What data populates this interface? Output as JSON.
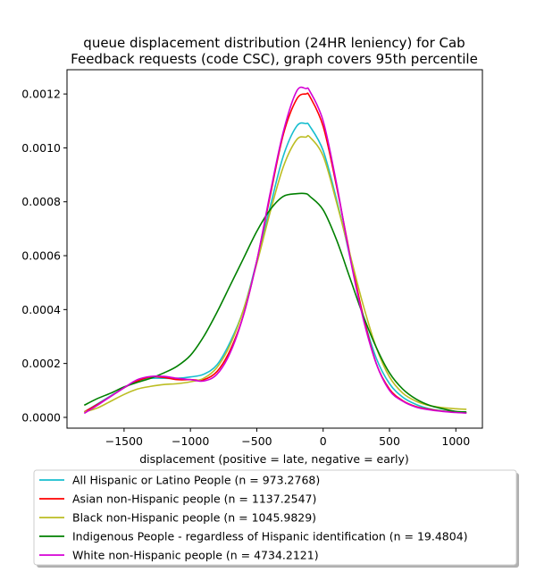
{
  "chart_data": {
    "type": "line",
    "title_lines": [
      "queue displacement distribution (24HR leniency) for Cab",
      "Feedback  requests (code CSC), graph covers 95th percentile"
    ],
    "xlabel": "displacement (positive = late, negative = early)",
    "ylabel": "",
    "xlim": [
      -1930,
      1200
    ],
    "ylim": [
      -4e-05,
      0.00129
    ],
    "x_ticks": [
      -1500,
      -1000,
      -500,
      0,
      500,
      1000
    ],
    "x_tick_labels": [
      "−1500",
      "−1000",
      "−500",
      "0",
      "500",
      "1000"
    ],
    "y_ticks": [
      0,
      0.0002,
      0.0004,
      0.0006,
      0.0008,
      0.001,
      0.0012
    ],
    "y_tick_labels": [
      "0.0000",
      "0.0002",
      "0.0004",
      "0.0006",
      "0.0008",
      "0.0010",
      "0.0012"
    ],
    "grid": false,
    "legend_position": "below",
    "x": [
      -1800,
      -1700,
      -1600,
      -1500,
      -1400,
      -1300,
      -1200,
      -1100,
      -1000,
      -900,
      -800,
      -700,
      -600,
      -500,
      -400,
      -300,
      -200,
      -130,
      -100,
      0,
      100,
      200,
      300,
      400,
      500,
      600,
      700,
      800,
      900,
      1000,
      1080
    ],
    "series": [
      {
        "name": "All Hispanic or Latino People (n = 973.2768)",
        "color": "#17becf",
        "values": [
          2e-05,
          5e-05,
          8e-05,
          0.00011,
          0.000135,
          0.000145,
          0.000145,
          0.000145,
          0.00015,
          0.00016,
          0.000195,
          0.00028,
          0.0004,
          0.00058,
          0.00078,
          0.00097,
          0.00108,
          0.00109,
          0.00108,
          0.00099,
          0.00081,
          0.0006,
          0.00038,
          0.00022,
          0.000125,
          7.5e-05,
          4.8e-05,
          3.2e-05,
          2.4e-05,
          2e-05,
          1.7e-05
        ]
      },
      {
        "name": "Asian non-Hispanic people (n = 1137.2547)",
        "color": "#ff0000",
        "values": [
          2e-05,
          4.8e-05,
          7.8e-05,
          0.00011,
          0.000135,
          0.00015,
          0.000148,
          0.00014,
          0.00014,
          0.00014,
          0.00017,
          0.00025,
          0.00038,
          0.00058,
          0.00082,
          0.00105,
          0.00118,
          0.0012,
          0.00119,
          0.00108,
          0.00086,
          0.00061,
          0.00038,
          0.0002,
          0.000105,
          6.2e-05,
          4e-05,
          3e-05,
          2.3e-05,
          1.9e-05,
          1.7e-05
        ]
      },
      {
        "name": "Black non-Hispanic people (n = 1045.9829)",
        "color": "#bcbd22",
        "values": [
          2e-05,
          3.5e-05,
          6e-05,
          8.5e-05,
          0.000105,
          0.000115,
          0.000122,
          0.000125,
          0.000132,
          0.000145,
          0.000185,
          0.00027,
          0.0004,
          0.00057,
          0.00076,
          0.00093,
          0.00103,
          0.00104,
          0.00104,
          0.00097,
          0.0008,
          0.00061,
          0.00042,
          0.00026,
          0.00015,
          9e-05,
          6e-05,
          4.4e-05,
          3.6e-05,
          3.2e-05,
          3e-05
        ]
      },
      {
        "name": "Indigenous People - regardless of Hispanic identification (n = 19.4804)",
        "color": "#008000",
        "values": [
          4.5e-05,
          7e-05,
          9e-05,
          0.000113,
          0.00013,
          0.000145,
          0.000165,
          0.00019,
          0.00023,
          0.0003,
          0.00039,
          0.00049,
          0.00059,
          0.00069,
          0.00077,
          0.00082,
          0.00083,
          0.00083,
          0.00082,
          0.00077,
          0.00066,
          0.00052,
          0.00038,
          0.00026,
          0.000165,
          0.000105,
          6.8e-05,
          4.5e-05,
          3.2e-05,
          2.2e-05,
          2e-05
        ]
      },
      {
        "name": "White non-Hispanic people (n = 4734.2121)",
        "color": "#d400d4",
        "values": [
          1.5e-05,
          4.5e-05,
          7.8e-05,
          0.00011,
          0.00014,
          0.000152,
          0.000152,
          0.000145,
          0.00014,
          0.000135,
          0.00016,
          0.00024,
          0.00038,
          0.00058,
          0.00083,
          0.00106,
          0.00121,
          0.00122,
          0.00121,
          0.0011,
          0.00087,
          0.0006,
          0.00037,
          0.0002,
          0.0001,
          6e-05,
          3.8e-05,
          2.8e-05,
          2.2e-05,
          1.8e-05,
          1.6e-05
        ]
      }
    ]
  }
}
